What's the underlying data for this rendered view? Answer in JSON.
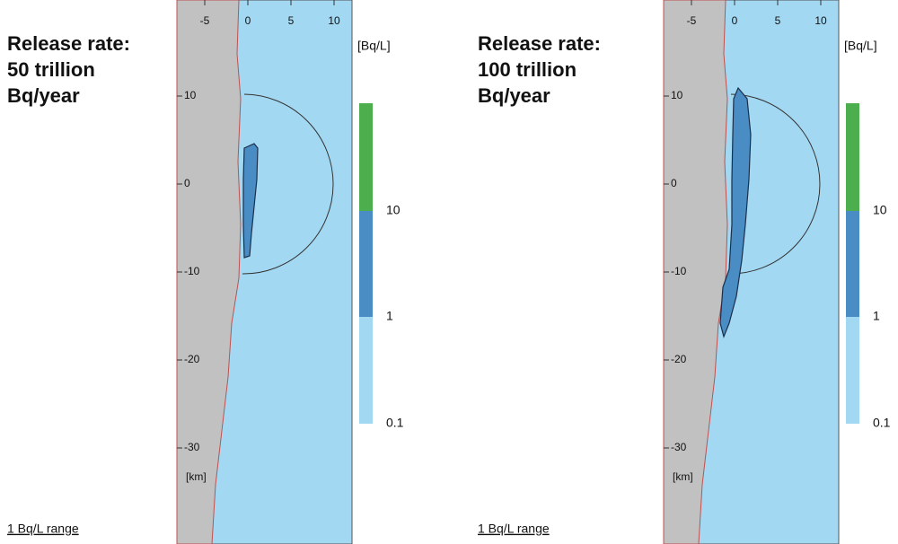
{
  "panels": [
    {
      "title": [
        "Release rate:",
        " 50 trillion",
        "Bq/year"
      ],
      "x_ticks": [
        -5,
        0,
        5,
        10
      ],
      "y_ticks": [
        10,
        0,
        -10,
        -20,
        -30
      ],
      "km_label": "[km]",
      "legend_unit": "[Bq/L]",
      "legend_labels": [
        10,
        1,
        0.1
      ],
      "footnote": "1 Bq/L range"
    },
    {
      "title": [
        "Release rate:",
        " 100 trillion",
        "Bq/year"
      ],
      "x_ticks": [
        -5,
        0,
        5,
        10
      ],
      "y_ticks": [
        10,
        0,
        -10,
        -20,
        -30
      ],
      "km_label": "[km]",
      "legend_unit": "[Bq/L]",
      "legend_labels": [
        10,
        1,
        0.1
      ],
      "footnote": "1 Bq/L range"
    }
  ]
}
